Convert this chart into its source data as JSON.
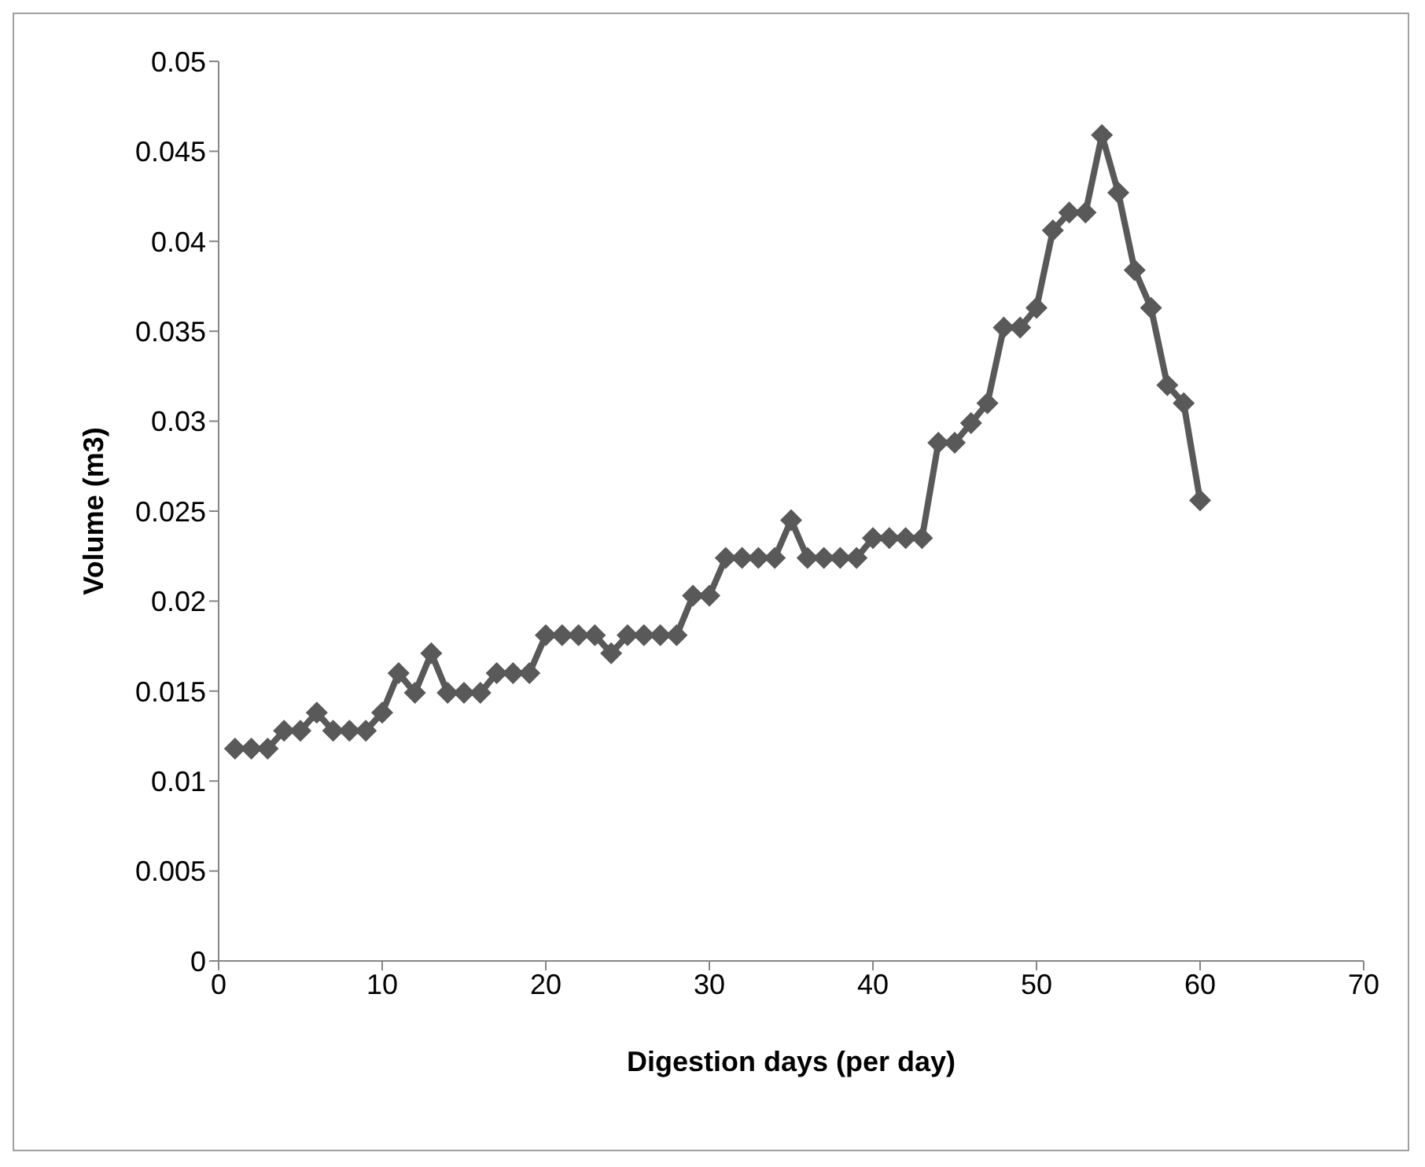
{
  "chart_data": {
    "type": "line",
    "xlabel": "Digestion days  (per day)",
    "ylabel": "Volume (m3)",
    "x": [
      1,
      2,
      3,
      4,
      5,
      6,
      7,
      8,
      9,
      10,
      11,
      12,
      13,
      14,
      15,
      16,
      17,
      18,
      19,
      20,
      21,
      22,
      23,
      24,
      25,
      26,
      27,
      28,
      29,
      30,
      31,
      32,
      33,
      34,
      35,
      36,
      37,
      38,
      39,
      40,
      41,
      42,
      43,
      44,
      45,
      46,
      47,
      48,
      49,
      50,
      51,
      52,
      53,
      54,
      55,
      56,
      57,
      58,
      59,
      60
    ],
    "series": [
      {
        "color": "#595959",
        "values": [
          0.0118,
          0.0118,
          0.0118,
          0.0128,
          0.0128,
          0.0138,
          0.0128,
          0.0128,
          0.0128,
          0.0138,
          0.016,
          0.0149,
          0.0171,
          0.0149,
          0.0149,
          0.0149,
          0.016,
          0.016,
          0.016,
          0.0181,
          0.0181,
          0.0181,
          0.0181,
          0.0171,
          0.0181,
          0.0181,
          0.0181,
          0.0181,
          0.0203,
          0.0203,
          0.0224,
          0.0224,
          0.0224,
          0.0224,
          0.0245,
          0.0224,
          0.0224,
          0.0224,
          0.0224,
          0.0235,
          0.0235,
          0.0235,
          0.0235,
          0.0288,
          0.0288,
          0.0299,
          0.031,
          0.0352,
          0.0352,
          0.0363,
          0.0406,
          0.0416,
          0.0416,
          0.0459,
          0.0427,
          0.0384,
          0.0363,
          0.032,
          0.031,
          0.0256
        ]
      }
    ],
    "xlim": [
      0,
      70
    ],
    "xticks": [
      0,
      10,
      20,
      30,
      40,
      50,
      60,
      70
    ],
    "ylim": [
      0,
      0.05
    ],
    "yticks": [
      0,
      0.005,
      0.01,
      0.015,
      0.02,
      0.025,
      0.03,
      0.035,
      0.04,
      0.045,
      0.05
    ],
    "grid": false,
    "legend": false,
    "marker": "diamond",
    "line_style": "solid"
  }
}
